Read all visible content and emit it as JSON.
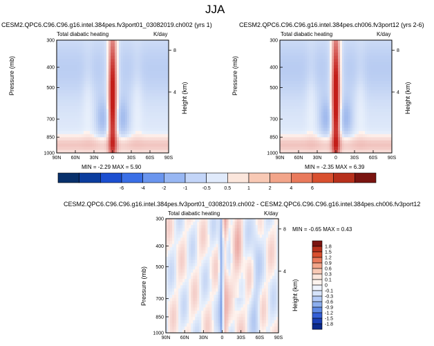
{
  "page": {
    "title": "JJA"
  },
  "chart_data": [
    {
      "type": "heatmap",
      "title": "CESM2.QPC6.C96.C96.g16.intel.384pes.fv3port01_03082019.ch002 (yrs 1)",
      "left_string": "Total diabatic heating",
      "right_string": "K/day",
      "xlabel": "",
      "ylabel": "Pressure (mb)",
      "ylabel_right": "Height (km)",
      "x_ticks": [
        "90N",
        "60N",
        "30N",
        "0",
        "30S",
        "60S",
        "90S"
      ],
      "y_ticks": [
        "300",
        "400",
        "500",
        "700",
        "850",
        "1000"
      ],
      "y_ticks_right": [
        "8",
        "4"
      ],
      "stats": "MIN = -2.29   MAX =  5.90",
      "min": -2.29,
      "max": 5.9
    },
    {
      "type": "heatmap",
      "title": "CESM2.QPC6.C96.C96.g16.intel.384pes.ch006.fv3port12 (yrs 2-6)",
      "left_string": "Total diabatic heating",
      "right_string": "K/day",
      "xlabel": "",
      "ylabel": "Pressure (mb)",
      "ylabel_right": "Height (km)",
      "x_ticks": [
        "90N",
        "60N",
        "30N",
        "0",
        "30S",
        "60S",
        "90S"
      ],
      "y_ticks": [
        "300",
        "400",
        "500",
        "700",
        "850",
        "1000"
      ],
      "y_ticks_right": [
        "8",
        "4"
      ],
      "stats": "MIN = -2.35   MAX =  6.39",
      "min": -2.35,
      "max": 6.39
    },
    {
      "type": "heatmap",
      "title": "CESM2.QPC6.C96.C96.g16.intel.384pes.fv3port01_03082019.ch002 - CESM2.QPC6.C96.C96.g16.intel.384pes.ch006.fv3port12",
      "left_string": "Total diabatic heating",
      "right_string": "K/day",
      "xlabel": "",
      "ylabel": "Pressure (mb)",
      "ylabel_right": "Height (km)",
      "x_ticks": [
        "90N",
        "60N",
        "30N",
        "0",
        "30S",
        "60S",
        "90S"
      ],
      "y_ticks": [
        "300",
        "400",
        "500",
        "700",
        "850",
        "1000"
      ],
      "y_ticks_right": [
        "8",
        "4"
      ],
      "stats": "MIN = -0.65   MAX =  0.43",
      "min": -0.65,
      "max": 0.43
    }
  ],
  "colorbar_top": {
    "labels": [
      "-6",
      "-4",
      "-2",
      "-1",
      "-0.5",
      "0.5",
      "1",
      "2",
      "4",
      "6"
    ],
    "colors": [
      "#08306b",
      "#0b3d9e",
      "#1c4fd0",
      "#3a6fe6",
      "#6a95ee",
      "#98b7f3",
      "#c3d5f8",
      "#e0eafb",
      "#fbe6dc",
      "#f8c9b5",
      "#f2a58a",
      "#e97a5c",
      "#d9502f",
      "#b7301c",
      "#7a1410"
    ]
  },
  "colorbar_diff": {
    "labels": [
      "1.8",
      "1.5",
      "1.2",
      "0.9",
      "0.6",
      "0.3",
      "0.1",
      "0",
      "-0.1",
      "-0.3",
      "-0.6",
      "-0.9",
      "-1.2",
      "-1.5",
      "-1.8"
    ],
    "colors": [
      "#7a1410",
      "#b7301c",
      "#d9502f",
      "#e97a5c",
      "#f2a58a",
      "#f8c9b5",
      "#fbe6dc",
      "#fdf3ee",
      "#eef3fd",
      "#d6e3fa",
      "#b4cbf6",
      "#8caeee",
      "#5f8ae5",
      "#345fd6",
      "#1a3fb5",
      "#0b2a8c"
    ]
  }
}
